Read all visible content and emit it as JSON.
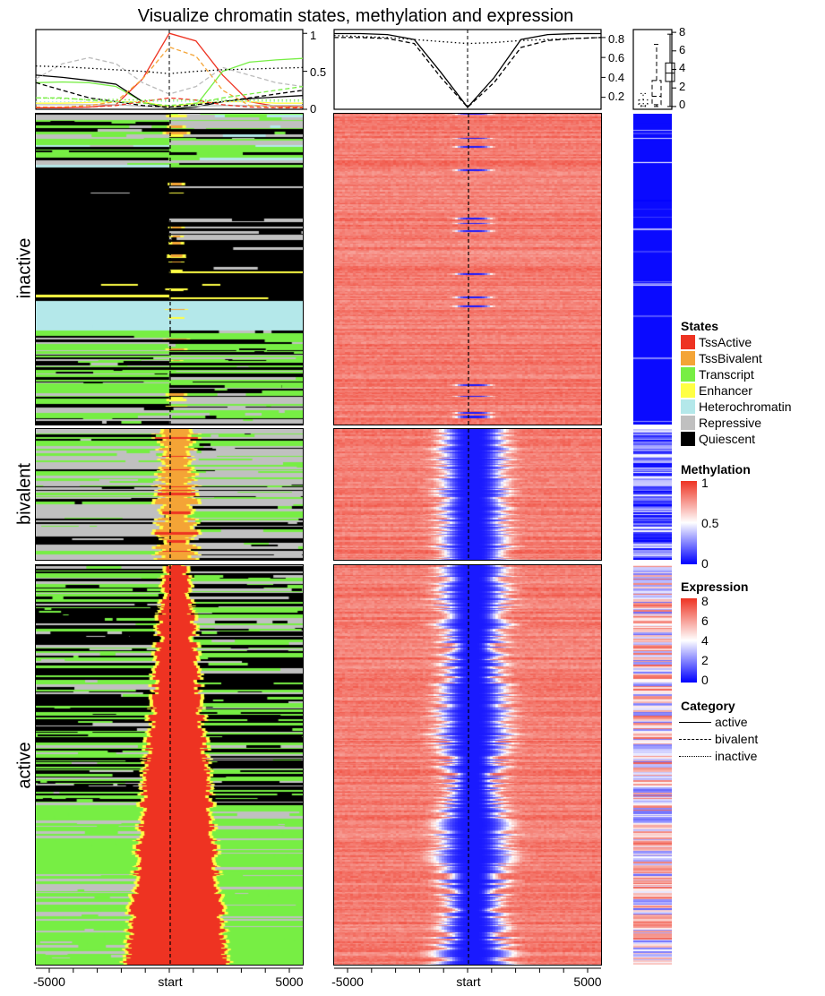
{
  "title": "Visualize chromatin states, methylation and expression",
  "groups": [
    "inactive",
    "bivalent",
    "active"
  ],
  "legend": {
    "states": {
      "title": "States",
      "items": [
        {
          "label": "TssActive",
          "color": "#ee3322"
        },
        {
          "label": "TssBivalent",
          "color": "#f4a436"
        },
        {
          "label": "Transcript",
          "color": "#77ee44"
        },
        {
          "label": "Enhancer",
          "color": "#ffff44"
        },
        {
          "label": "Heterochromatin",
          "color": "#b4e8ea"
        },
        {
          "label": "Repressive",
          "color": "#c0c0c0"
        },
        {
          "label": "Quiescent",
          "color": "#000000"
        }
      ]
    },
    "methylation": {
      "title": "Methylation",
      "ticks": [
        "1",
        "0.5",
        "0"
      ],
      "colors": [
        "#0000ff",
        "#ffffff",
        "#ee3322"
      ]
    },
    "expression": {
      "title": "Expression",
      "ticks": [
        "8",
        "6",
        "4",
        "2",
        "0"
      ],
      "colors": [
        "#0000ff",
        "#ffffff",
        "#ee3322"
      ]
    },
    "category": {
      "title": "Category",
      "items": [
        {
          "label": "active",
          "line": "solid"
        },
        {
          "label": "bivalent",
          "line": "dashed"
        },
        {
          "label": "inactive",
          "line": "dotted"
        }
      ]
    }
  },
  "chart_data": [
    {
      "type": "line",
      "panel": "chromatin states profile",
      "x": [
        -5000,
        -4000,
        -3000,
        -2000,
        -1000,
        0,
        1000,
        2000,
        3000,
        4000,
        5000
      ],
      "xticks": [
        "-5000",
        "start",
        "5000"
      ],
      "yticks": [
        "0",
        "0.5",
        "1"
      ],
      "ylim": [
        0,
        1.05
      ],
      "series": [
        {
          "state": "TssActive",
          "category": "active",
          "values": [
            0.02,
            0.02,
            0.03,
            0.06,
            0.4,
            1.0,
            0.9,
            0.45,
            0.1,
            0.04,
            0.03
          ]
        },
        {
          "state": "Transcript",
          "category": "active",
          "values": [
            0.35,
            0.36,
            0.35,
            0.3,
            0.1,
            0.0,
            0.05,
            0.5,
            0.62,
            0.65,
            0.67
          ]
        },
        {
          "state": "Quiescent",
          "category": "active",
          "values": [
            0.45,
            0.42,
            0.38,
            0.33,
            0.1,
            0.0,
            0.03,
            0.1,
            0.14,
            0.16,
            0.18
          ]
        },
        {
          "state": "Enhancer",
          "category": "active",
          "values": [
            0.08,
            0.08,
            0.09,
            0.1,
            0.1,
            0.03,
            0.08,
            0.1,
            0.1,
            0.08,
            0.08
          ]
        },
        {
          "state": "Repressive",
          "category": "active",
          "values": [
            0.06,
            0.06,
            0.06,
            0.06,
            0.04,
            0.02,
            0.04,
            0.05,
            0.05,
            0.05,
            0.05
          ]
        },
        {
          "state": "TssBivalent",
          "category": "bivalent",
          "values": [
            0.03,
            0.03,
            0.05,
            0.1,
            0.4,
            0.82,
            0.7,
            0.25,
            0.05,
            0.03,
            0.03
          ]
        },
        {
          "state": "Repressive",
          "category": "bivalent",
          "values": [
            0.4,
            0.6,
            0.68,
            0.6,
            0.35,
            0.2,
            0.3,
            0.55,
            0.45,
            0.35,
            0.3
          ]
        },
        {
          "state": "Quiescent",
          "category": "bivalent",
          "values": [
            0.35,
            0.25,
            0.15,
            0.1,
            0.05,
            0.03,
            0.06,
            0.1,
            0.15,
            0.2,
            0.25
          ]
        },
        {
          "state": "Transcript",
          "category": "bivalent",
          "values": [
            0.15,
            0.15,
            0.12,
            0.1,
            0.08,
            0.05,
            0.08,
            0.15,
            0.2,
            0.25,
            0.3
          ]
        },
        {
          "state": "TssActive",
          "category": "bivalent",
          "values": [
            0.02,
            0.02,
            0.03,
            0.05,
            0.1,
            0.15,
            0.12,
            0.06,
            0.03,
            0.02,
            0.02
          ]
        },
        {
          "state": "Quiescent",
          "category": "inactive",
          "values": [
            0.57,
            0.56,
            0.54,
            0.52,
            0.5,
            0.47,
            0.5,
            0.52,
            0.53,
            0.54,
            0.55
          ]
        },
        {
          "state": "Transcript",
          "category": "inactive",
          "values": [
            0.15,
            0.14,
            0.13,
            0.13,
            0.12,
            0.12,
            0.12,
            0.12,
            0.12,
            0.12,
            0.12
          ]
        },
        {
          "state": "Heterochromatin",
          "category": "inactive",
          "values": [
            0.1,
            0.1,
            0.1,
            0.1,
            0.1,
            0.1,
            0.1,
            0.1,
            0.1,
            0.1,
            0.1
          ]
        }
      ]
    },
    {
      "type": "line",
      "panel": "methylation profile",
      "x": [
        -5000,
        -4000,
        -3000,
        -2000,
        -1000,
        0,
        1000,
        2000,
        3000,
        4000,
        5000
      ],
      "xticks": [
        "-5000",
        "start",
        "5000"
      ],
      "yticks": [
        "0.2",
        "0.4",
        "0.6",
        "0.8"
      ],
      "ylim": [
        0.08,
        0.88
      ],
      "series": [
        {
          "category": "active",
          "values": [
            0.84,
            0.84,
            0.83,
            0.78,
            0.45,
            0.1,
            0.4,
            0.78,
            0.83,
            0.84,
            0.84
          ]
        },
        {
          "category": "bivalent",
          "values": [
            0.8,
            0.8,
            0.79,
            0.74,
            0.4,
            0.1,
            0.35,
            0.7,
            0.77,
            0.79,
            0.8
          ]
        },
        {
          "category": "inactive",
          "values": [
            0.82,
            0.81,
            0.8,
            0.78,
            0.76,
            0.74,
            0.75,
            0.77,
            0.78,
            0.79,
            0.8
          ]
        }
      ]
    },
    {
      "type": "box",
      "panel": "expression boxplot",
      "yticks": [
        "0",
        "2",
        "4",
        "6",
        "8"
      ],
      "ylim": [
        -0.3,
        8.3
      ],
      "boxes": [
        {
          "category": "inactive",
          "min": 0,
          "q1": 0.1,
          "median": 0.3,
          "q3": 0.7,
          "max": 1.4
        },
        {
          "category": "bivalent",
          "min": 0,
          "q1": 0.2,
          "median": 1.1,
          "q3": 2.8,
          "max": 6.7
        },
        {
          "category": "active",
          "min": 0,
          "q1": 2.7,
          "median": 3.6,
          "q3": 4.7,
          "max": 7.8
        }
      ]
    },
    {
      "type": "heatmap",
      "panels": [
        "chromatin states",
        "methylation",
        "expression"
      ],
      "row_groups": [
        "inactive",
        "bivalent",
        "active"
      ],
      "xticks": [
        "-5000",
        "start",
        "5000"
      ]
    }
  ]
}
